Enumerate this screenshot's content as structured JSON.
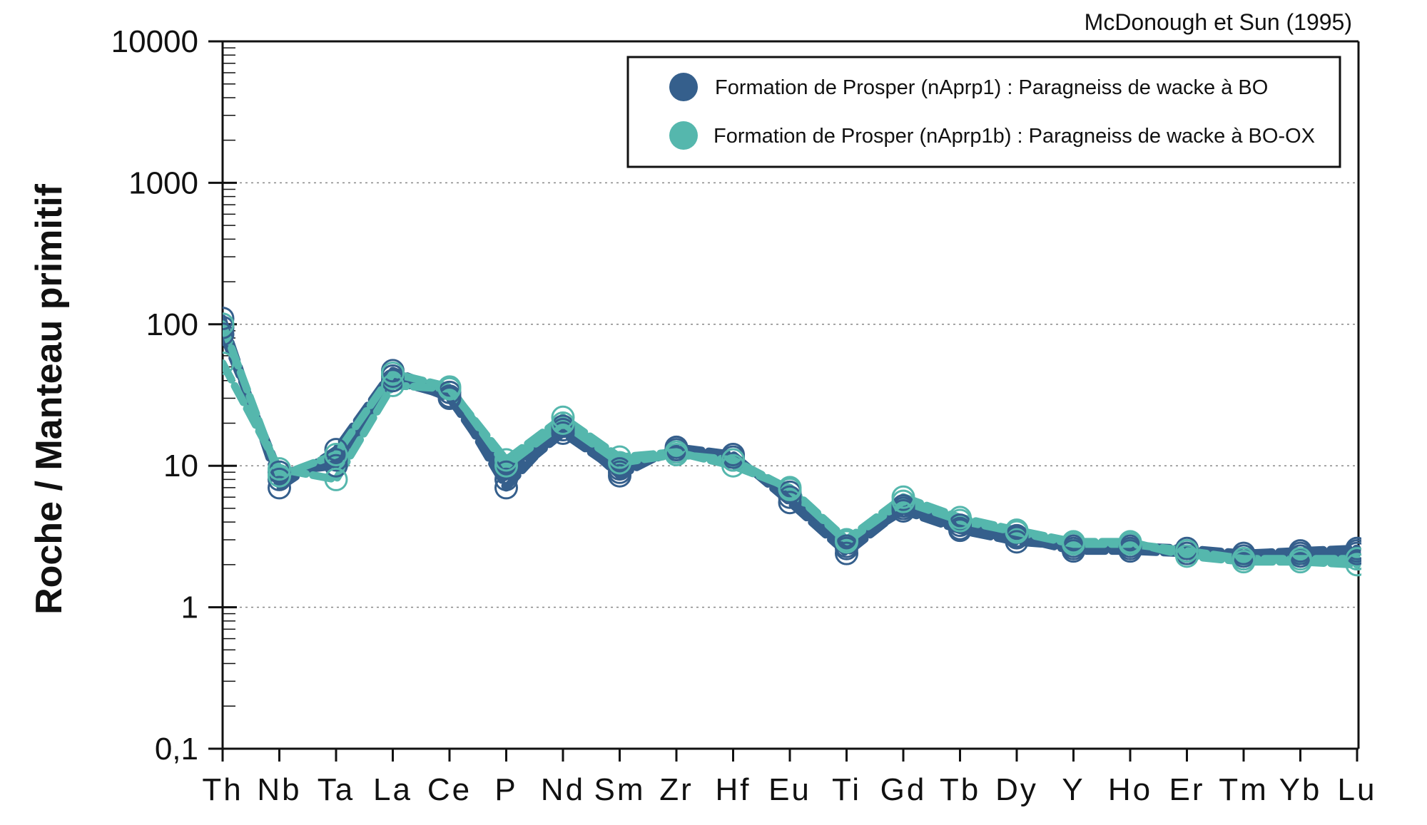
{
  "chart_data": {
    "type": "line",
    "title": "",
    "reference": "McDonough et Sun (1995)",
    "ylabel": "Roche / Manteau primitif",
    "xlabel": "",
    "yscale": "log",
    "ylim": [
      0.1,
      10000
    ],
    "ytick_labels": [
      "10000",
      "1000",
      "100",
      "10",
      "1",
      "0,1"
    ],
    "yticks": [
      10000,
      1000,
      100,
      10,
      1,
      0.1
    ],
    "categories": [
      "Th",
      "Nb",
      "Ta",
      "La",
      "Ce",
      "P",
      "Nd",
      "Sm",
      "Zr",
      "Hf",
      "Eu",
      "Ti",
      "Gd",
      "Tb",
      "Dy",
      "Y",
      "Ho",
      "Er",
      "Tm",
      "Yb",
      "Lu"
    ],
    "grid": "horizontal dotted at decades",
    "legend_position": "top-right",
    "series": [
      {
        "name": "Formation de Prosper (nAprp1) : Paragneiss de wacke à BO",
        "color": "#355f8c",
        "values": [
          110,
          7,
          13,
          47,
          33,
          7,
          19,
          8.5,
          13.5,
          12,
          5.5,
          2.4,
          5,
          3.6,
          3.1,
          2.5,
          2.5,
          2.4,
          2.2,
          2.3,
          2.4
        ]
      },
      {
        "name": "Formation de Prosper (nAprp1) : Paragneiss de wacke à BO",
        "color": "#355f8c",
        "values": [
          95,
          8,
          11,
          43,
          30,
          8,
          17,
          9,
          13,
          11.5,
          6,
          2.6,
          5.2,
          3.8,
          3.2,
          2.6,
          2.6,
          2.5,
          2.3,
          2.4,
          2.5
        ]
      },
      {
        "name": "Formation de Prosper (nAprp1) : Paragneiss de wacke à BO",
        "color": "#355f8c",
        "values": [
          85,
          9,
          10,
          40,
          31,
          9,
          18,
          9.5,
          12.5,
          11,
          6.5,
          2.7,
          4.8,
          3.5,
          2.9,
          2.7,
          2.7,
          2.6,
          2.4,
          2.5,
          2.6
        ]
      },
      {
        "name": "Formation de Prosper (nAprp1b) : Paragneiss de wacke à BO-OX",
        "color": "#55b7ad",
        "values": [
          53,
          9.5,
          8,
          37,
          35,
          11,
          22,
          11.5,
          12.5,
          10,
          7,
          3,
          6,
          4.3,
          3.5,
          2.9,
          2.9,
          2.3,
          2.1,
          2.1,
          2
        ]
      },
      {
        "name": "Formation de Prosper (nAprp1b) : Paragneiss de wacke à BO-OX",
        "color": "#55b7ad",
        "values": [
          100,
          8.5,
          12,
          45,
          36,
          10,
          20,
          10.5,
          12,
          11,
          6.8,
          2.9,
          5.6,
          4.1,
          3.4,
          2.8,
          2.8,
          2.5,
          2.2,
          2.2,
          2.2
        ]
      }
    ]
  }
}
